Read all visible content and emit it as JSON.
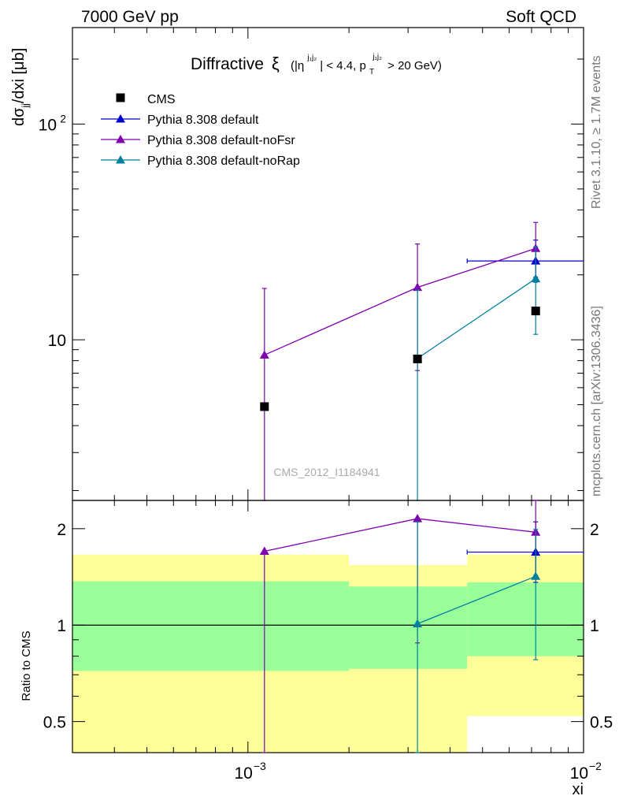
{
  "header": {
    "left": "7000 GeV pp",
    "right": "Soft QCD"
  },
  "side_text": {
    "rivet": "Rivet 3.1.10, ≥ 1.7M events",
    "mcplots": "mcplots.cern.ch [arXiv:1306.3436]"
  },
  "watermark": "CMS_2012_I1184941",
  "plot_title": {
    "main": "Diffractive",
    "symbol": "ξ",
    "cuts": "(|η^{j1j2}| < 4.4, p_T^{j1j2} > 20 GeV)",
    "open_paren": "(|η",
    "eta_sup": "j₁j₂",
    "mid": "| < 4.4, p",
    "pt_sub": "T",
    "pt_sup": "j₁j₂",
    "end": "> 20 GeV)"
  },
  "colors": {
    "cms": "#000000",
    "default": "#0000cc",
    "noFsr": "#8000b0",
    "noRap": "#0080a0",
    "band_inner": "#99ff99",
    "band_outer": "#ffff99"
  },
  "chart_data": [
    {
      "type": "scatter",
      "panel": "main",
      "ylabel": "dσjj/dxi [μb]",
      "ylabel_parts": {
        "a": "dσ",
        "sub": "jj",
        "b": "/dxi [μb]"
      },
      "xscale": "log",
      "yscale": "log",
      "xlim": [
        0.0003,
        0.01
      ],
      "ylim": [
        1.8,
        280
      ],
      "yticks": [
        {
          "value": 10,
          "label": "10"
        },
        {
          "value": 100,
          "label": "10",
          "sup": "2"
        }
      ],
      "legend_position": "top-left",
      "series": [
        {
          "name": "CMS",
          "color_key": "cms",
          "marker": "square",
          "points": [
            {
              "x": 0.00112,
              "y": 4.9,
              "ylo": 4.8,
              "yhi": 5.0
            },
            {
              "x": 0.0032,
              "y": 8.15,
              "ylo": 7.9,
              "yhi": 8.4
            },
            {
              "x": 0.0072,
              "y": 13.6,
              "ylo": 13.2,
              "yhi": 14.0
            }
          ]
        },
        {
          "name": "Pythia 8.308 default",
          "color_key": "default",
          "marker": "triangle",
          "points": [
            {
              "x": 0.0072,
              "y": 23.2,
              "ylo": 18.5,
              "yhi": 29.0,
              "xlo": 0.0045,
              "xhi": 0.01
            }
          ]
        },
        {
          "name": "Pythia 8.308 default-noFsr",
          "color_key": "noFsr",
          "marker": "triangle",
          "points": [
            {
              "x": 0.00112,
              "y": 8.5,
              "ylo": 1.8,
              "yhi": 17.3
            },
            {
              "x": 0.0032,
              "y": 17.5,
              "ylo": 7.2,
              "yhi": 27.8
            },
            {
              "x": 0.0072,
              "y": 26.5,
              "ylo": 19.5,
              "yhi": 35.0
            }
          ]
        },
        {
          "name": "Pythia 8.308 default-noRap",
          "color_key": "noRap",
          "marker": "triangle",
          "points": [
            {
              "x": 0.0032,
              "y": 8.2,
              "ylo": 1.8,
              "yhi": 17.0
            },
            {
              "x": 0.0072,
              "y": 19.2,
              "ylo": 10.6,
              "yhi": 27.0
            }
          ]
        }
      ]
    },
    {
      "type": "scatter",
      "panel": "ratio",
      "ylabel": "Ratio to CMS",
      "xlabel": "xi",
      "xscale": "log",
      "yscale": "log",
      "xlim": [
        0.0003,
        0.01
      ],
      "ylim": [
        0.4,
        2.45
      ],
      "yticks": [
        {
          "value": 0.5,
          "label": "0.5"
        },
        {
          "value": 1,
          "label": "1"
        },
        {
          "value": 2,
          "label": "2"
        }
      ],
      "xticks": [
        {
          "value": 0.001,
          "label": "10",
          "sup": "−3"
        },
        {
          "value": 0.01,
          "label": "10",
          "sup": "−2"
        }
      ],
      "bands": [
        {
          "xlo": 0.0003,
          "xhi": 0.002,
          "inner": [
            0.72,
            1.37
          ],
          "outer": [
            0.4,
            1.66
          ]
        },
        {
          "xlo": 0.002,
          "xhi": 0.0045,
          "inner": [
            0.73,
            1.32
          ],
          "outer": [
            0.4,
            1.54
          ]
        },
        {
          "xlo": 0.0045,
          "xhi": 0.01,
          "inner": [
            0.8,
            1.36
          ],
          "outer": [
            0.52,
            1.66
          ]
        }
      ],
      "series": [
        {
          "name": "Pythia 8.308 default",
          "color_key": "default",
          "points": [
            {
              "x": 0.0072,
              "y": 1.69,
              "ylo": 1.36,
              "yhi": 2.1,
              "xlo": 0.0045,
              "xhi": 0.01
            }
          ]
        },
        {
          "name": "Pythia 8.308 default-noFsr",
          "color_key": "noFsr",
          "points": [
            {
              "x": 0.00112,
              "y": 1.7,
              "ylo": 0.4,
              "yhi": 1.7
            },
            {
              "x": 0.0032,
              "y": 2.15,
              "ylo": 0.88,
              "yhi": 2.15
            },
            {
              "x": 0.0072,
              "y": 1.95,
              "ylo": 1.43,
              "yhi": 2.45
            }
          ]
        },
        {
          "name": "Pythia 8.308 default-noRap",
          "color_key": "noRap",
          "points": [
            {
              "x": 0.0032,
              "y": 1.01,
              "ylo": 0.4,
              "yhi": 2.1
            },
            {
              "x": 0.0072,
              "y": 1.42,
              "ylo": 0.78,
              "yhi": 1.99
            }
          ]
        }
      ]
    }
  ]
}
